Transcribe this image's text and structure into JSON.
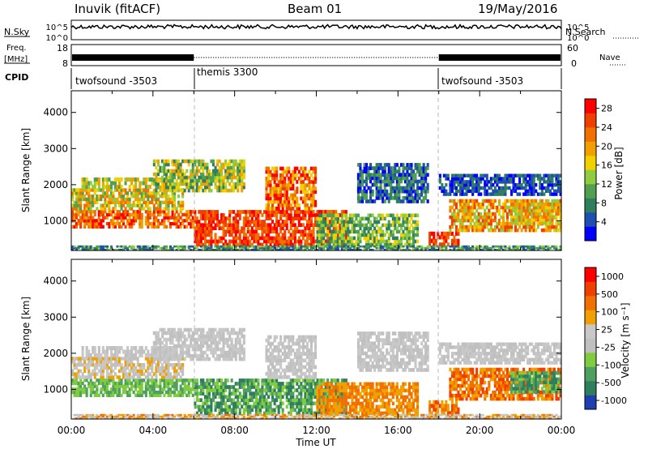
{
  "header": {
    "station": "Inuvik (fitACF)",
    "beam": "Beam 01",
    "date": "19/May/2016"
  },
  "colors": {
    "power": [
      "#0000ff",
      "#1f4fb0",
      "#2f7f5f",
      "#50a050",
      "#8fcc40",
      "#f0d000",
      "#f0a000",
      "#f07000",
      "#f04000",
      "#ff0000"
    ],
    "velocity": [
      "#1f3fb0",
      "#2f7f5f",
      "#4fa060",
      "#7fcc40",
      "#c0c0c0",
      "#c8c8c8",
      "#f0a000",
      "#f07000",
      "#f04000",
      "#ff0000"
    ]
  },
  "strips": {
    "nsky_label": "N.Sky",
    "nsearch_label": "N.Search",
    "nsky_ticks": [
      "10^5",
      "10^0"
    ],
    "nsearch_ticks": [
      "10^5",
      "10^0"
    ],
    "freq_label_1": "Freq.",
    "freq_label_2": "[MHz]",
    "freq_ticks": [
      "18",
      "8"
    ],
    "nave_label": "Nave",
    "nave_ticks": [
      "60",
      "0"
    ],
    "cpid_label": "CPID",
    "cpid_segments": [
      {
        "label": "twofsound -3503",
        "start": 0,
        "end": 6
      },
      {
        "label": "themis 3300",
        "start": 6,
        "end": 18
      },
      {
        "label": "twofsound -3503",
        "start": 18,
        "end": 24
      }
    ]
  },
  "chart_data": [
    {
      "type": "heatmap",
      "name": "power",
      "xlabel": "",
      "ylabel": "Slant Range [km]",
      "xlim": [
        0,
        24
      ],
      "ylim": [
        180,
        4600
      ],
      "yticks": [
        "1000",
        "2000",
        "3000",
        "4000"
      ],
      "colorbar_title": "Power [dB]",
      "colorbar_ticks": [
        "4",
        "8",
        "12",
        "16",
        "20",
        "24",
        "28"
      ],
      "zlim": [
        0,
        30
      ]
    },
    {
      "type": "heatmap",
      "name": "velocity",
      "xlabel": "Time UT",
      "ylabel": "Slant Range [km]",
      "xlim": [
        0,
        24
      ],
      "ylim": [
        180,
        4600
      ],
      "xticks": [
        "00:00",
        "04:00",
        "08:00",
        "12:00",
        "16:00",
        "20:00",
        "00:00"
      ],
      "yticks": [
        "1000",
        "2000",
        "3000",
        "4000"
      ],
      "colorbar_title": "Velocity [m s⁻¹]",
      "colorbar_ticks": [
        "1000",
        "500",
        "100",
        "25",
        "-25",
        "-100",
        "-500",
        "-1000"
      ],
      "zlim": [
        -1000,
        1000
      ]
    }
  ]
}
